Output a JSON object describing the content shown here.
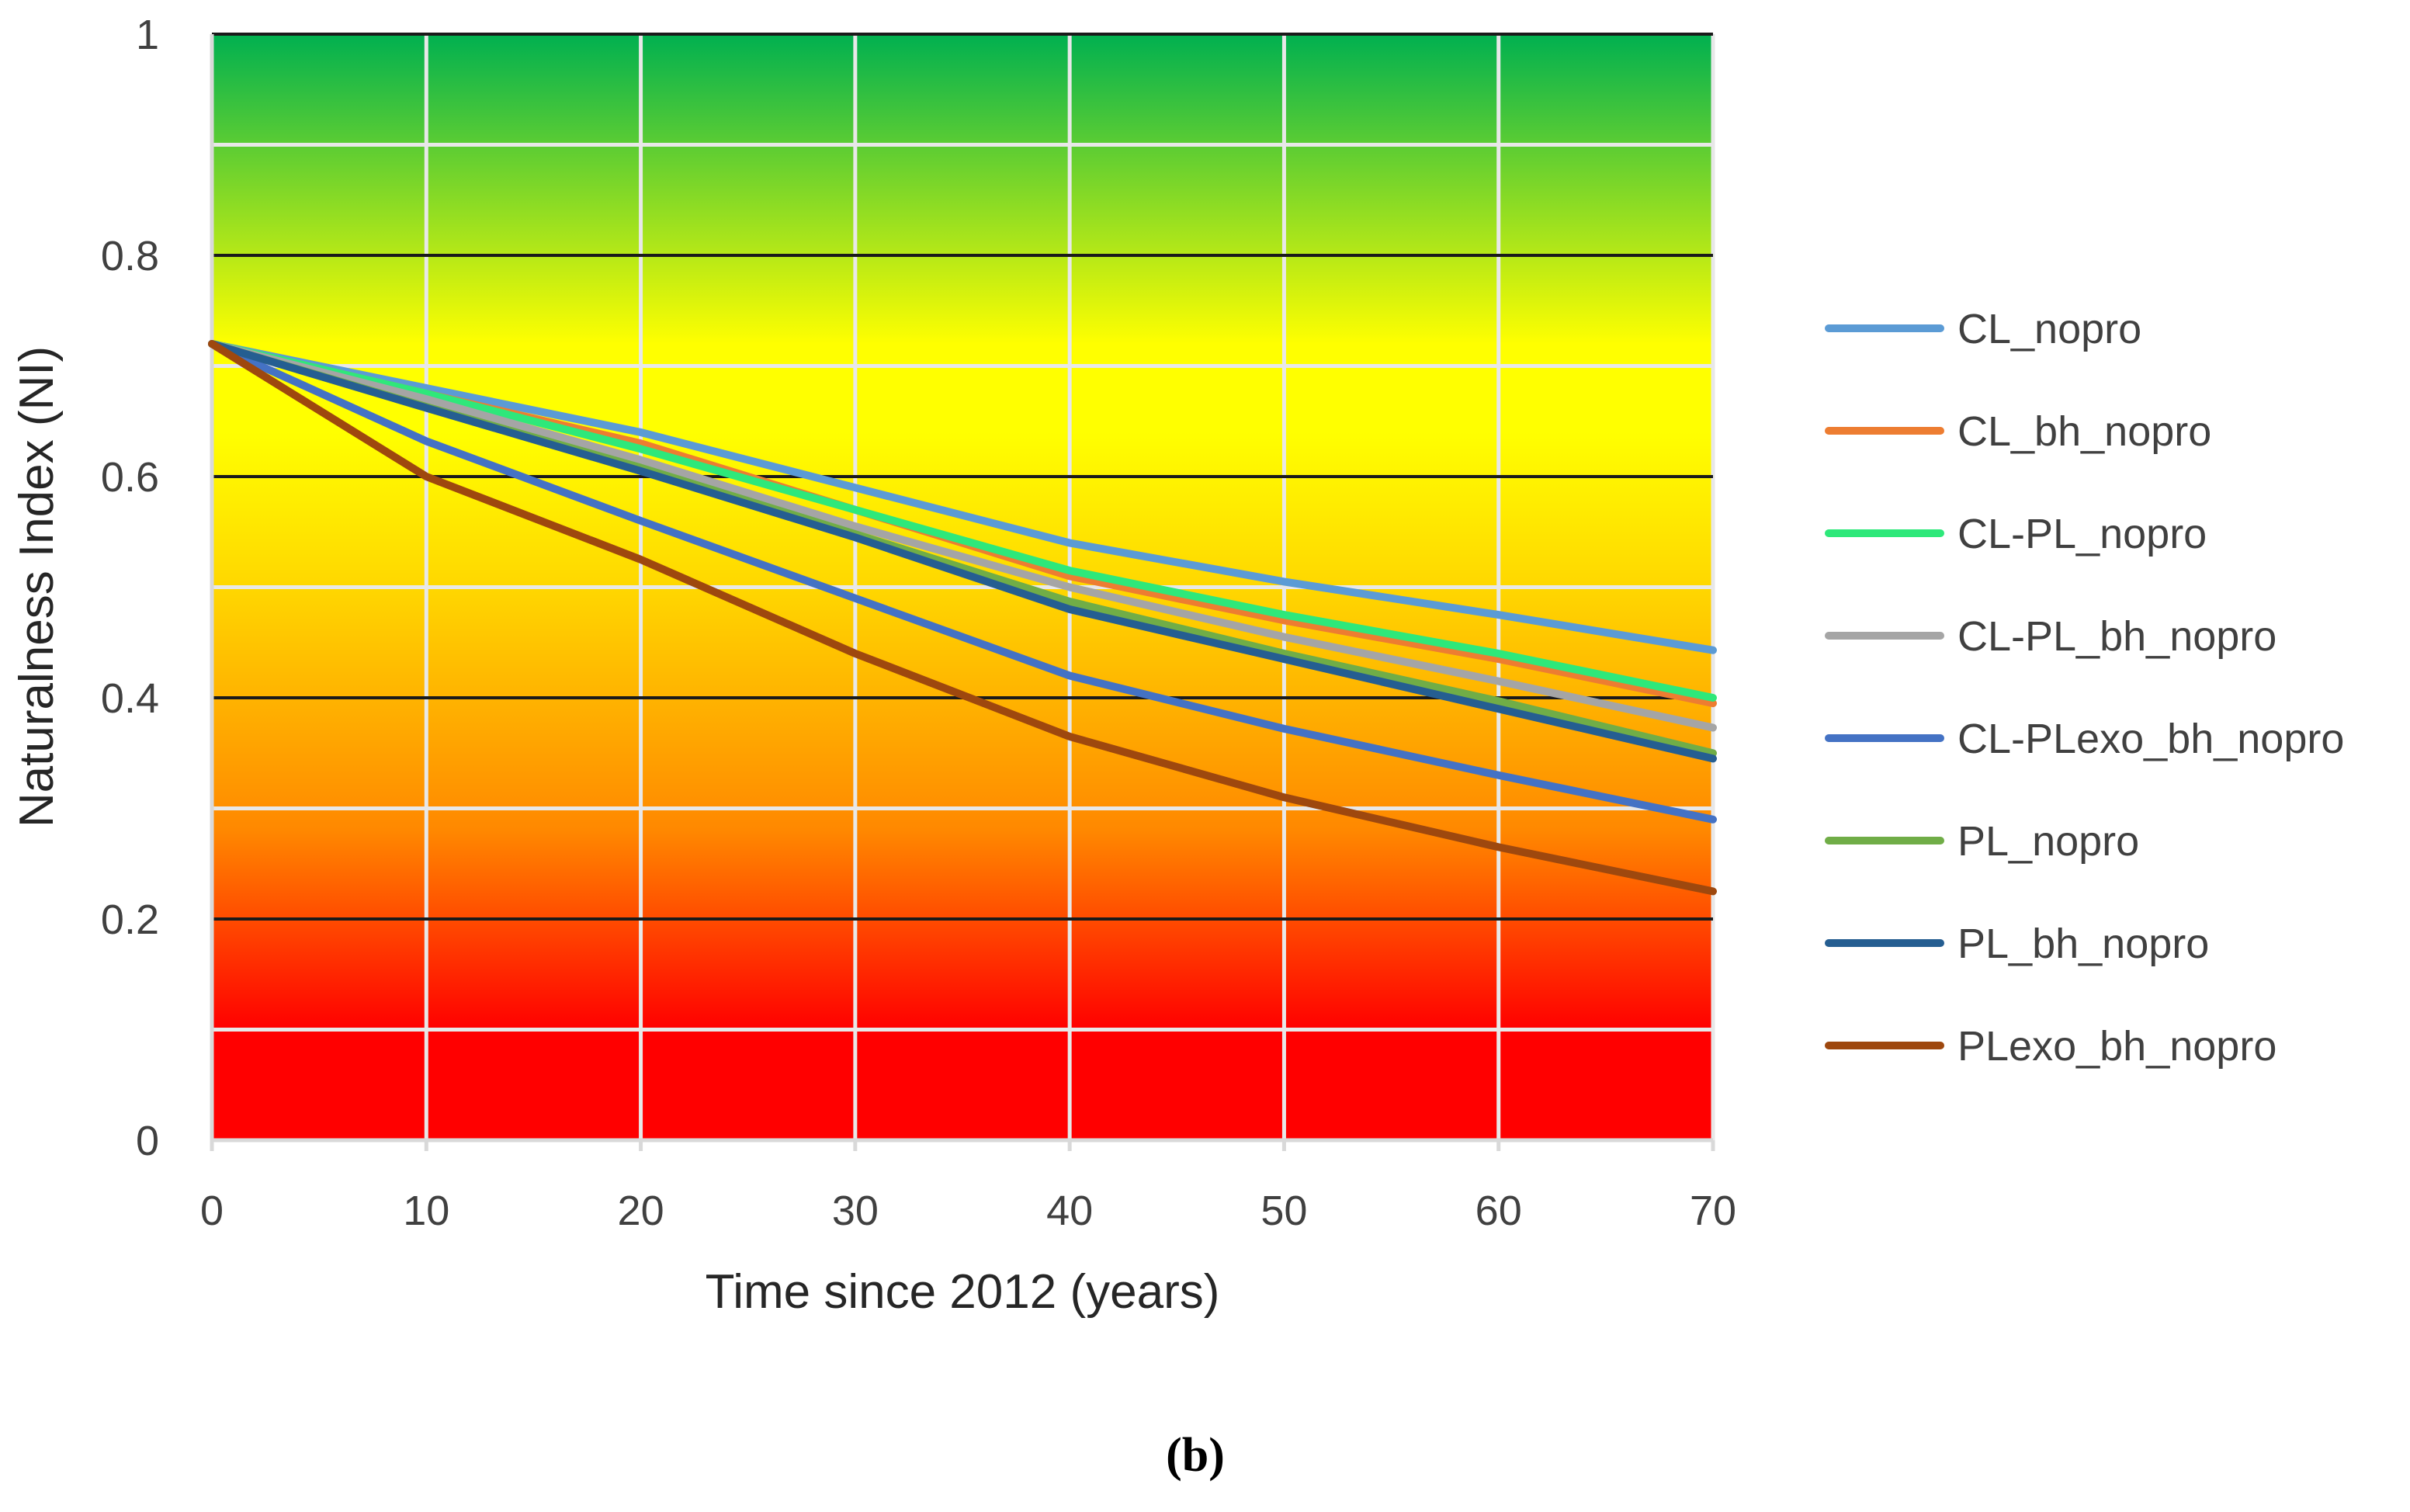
{
  "chart_data": {
    "type": "line",
    "title": "",
    "panel_label": "(b)",
    "xlabel": "Time since 2012 (years)",
    "ylabel": "Naturalness Index (NI)",
    "xlim": [
      0,
      70
    ],
    "ylim": [
      0,
      1
    ],
    "x_ticks": [
      "0",
      "10",
      "20",
      "30",
      "40",
      "50",
      "60",
      "70"
    ],
    "y_ticks": [
      "0",
      "0.2",
      "0.4",
      "0.6",
      "0.8",
      "1"
    ],
    "grid": true,
    "legend_position": "right",
    "background_bands": [
      {
        "from": 0.0,
        "to": 0.1,
        "color": "#ff0000"
      },
      {
        "from": 0.1,
        "to": 0.3,
        "color": "#ff8800"
      },
      {
        "from": 0.3,
        "to": 0.6,
        "color": "#ffd700"
      },
      {
        "from": 0.6,
        "to": 0.7,
        "color": "#ffff00"
      },
      {
        "from": 0.7,
        "to": 1.0,
        "color": "#00b050"
      }
    ],
    "x": [
      0,
      10,
      20,
      30,
      40,
      50,
      60,
      70
    ],
    "series": [
      {
        "name": "CL_nopro",
        "color": "#5b9bd5",
        "values": [
          0.72,
          0.68,
          0.64,
          0.59,
          0.54,
          0.505,
          0.475,
          0.443
        ]
      },
      {
        "name": "CL_bh_nopro",
        "color": "#ed7d31",
        "values": [
          0.72,
          0.675,
          0.63,
          0.57,
          0.51,
          0.47,
          0.435,
          0.395
        ]
      },
      {
        "name": "CL-PL_nopro",
        "color": "#2ee87a",
        "values": [
          0.72,
          0.675,
          0.625,
          0.57,
          0.515,
          0.475,
          0.44,
          0.4
        ]
      },
      {
        "name": "CL-PL_bh_nopro",
        "color": "#a5a5a5",
        "values": [
          0.72,
          0.67,
          0.615,
          0.555,
          0.5,
          0.455,
          0.415,
          0.373
        ]
      },
      {
        "name": "CL-PLexo_bh_nopro",
        "color": "#4472c4",
        "values": [
          0.72,
          0.632,
          0.56,
          0.49,
          0.42,
          0.372,
          0.33,
          0.29
        ]
      },
      {
        "name": "PL_nopro",
        "color": "#70ad47",
        "values": [
          0.72,
          0.663,
          0.608,
          0.548,
          0.487,
          0.44,
          0.397,
          0.35
        ]
      },
      {
        "name": "PL_bh_nopro",
        "color": "#255e91",
        "values": [
          0.72,
          0.662,
          0.605,
          0.545,
          0.48,
          0.435,
          0.39,
          0.345
        ]
      },
      {
        "name": "PLexo_bh_nopro",
        "color": "#9e480e",
        "values": [
          0.72,
          0.6,
          0.525,
          0.44,
          0.365,
          0.31,
          0.265,
          0.225
        ]
      }
    ]
  }
}
